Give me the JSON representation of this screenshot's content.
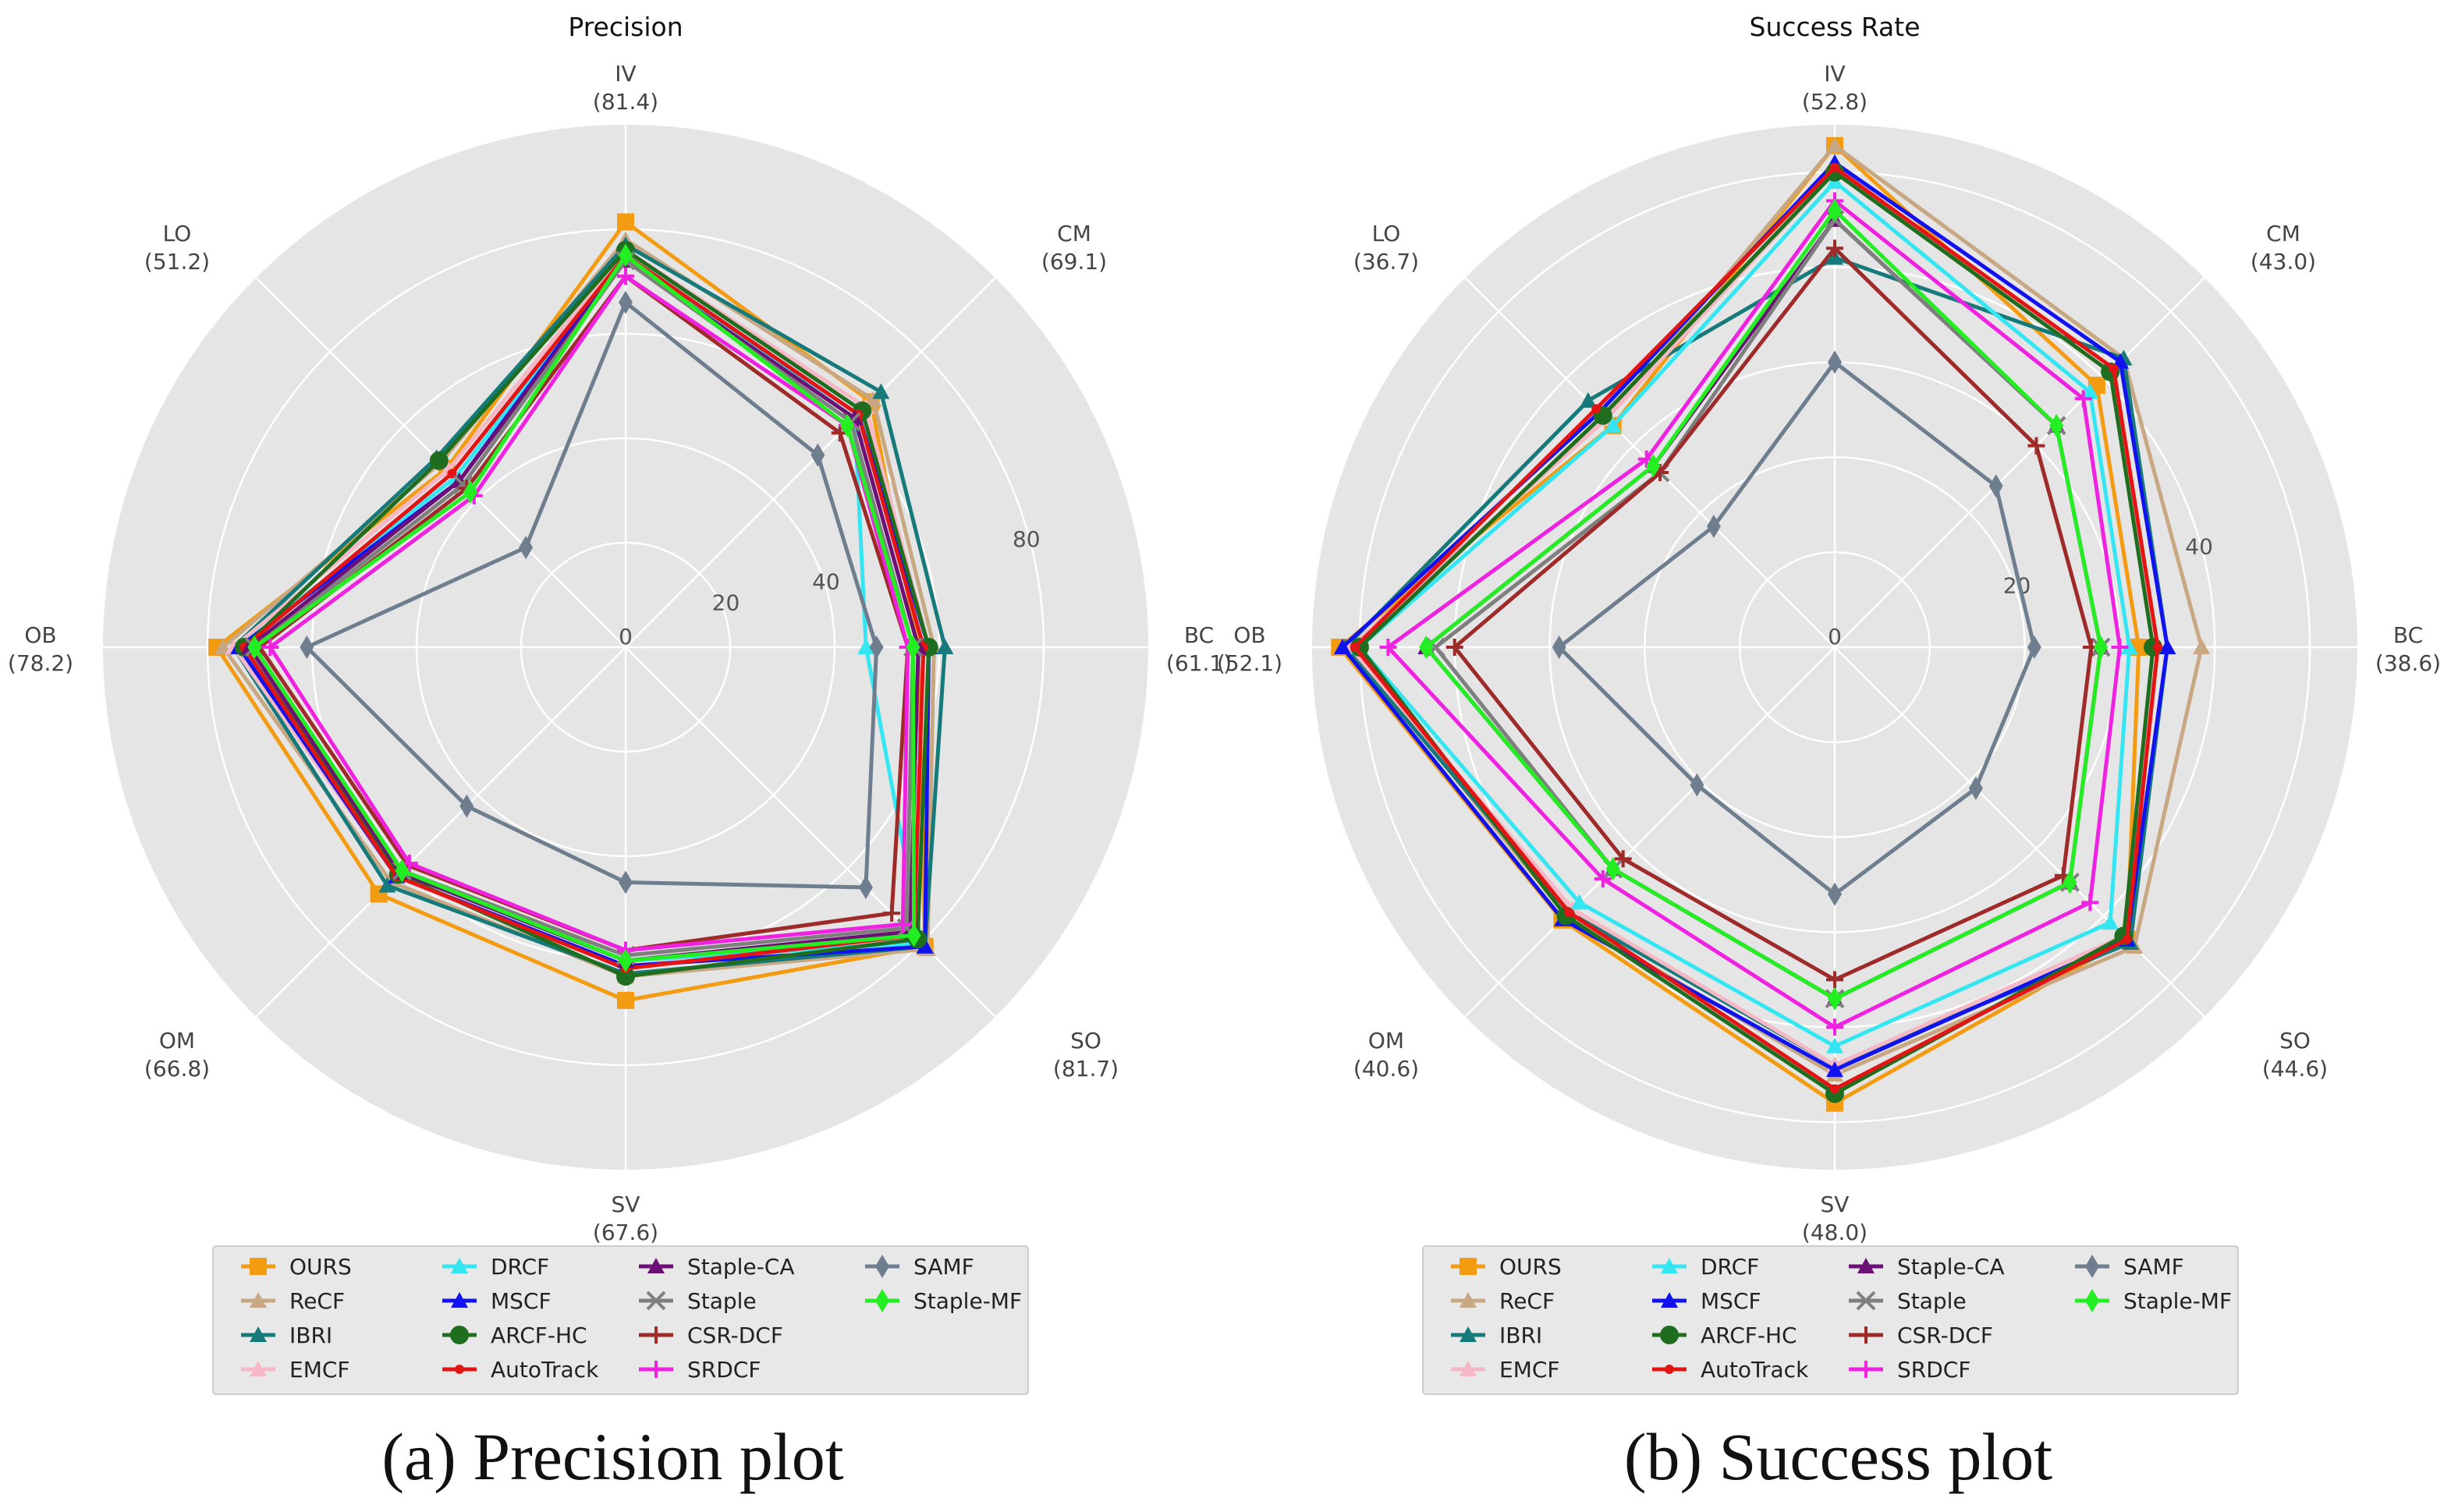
{
  "captions": [
    "(a) Precision plot",
    "(b) Success plot"
  ],
  "chart_data": [
    {
      "type": "radar",
      "title": "Precision",
      "rmax": 100,
      "rticks": [
        0,
        20,
        40,
        80
      ],
      "axes": [
        "IV",
        "CM",
        "BC",
        "SO",
        "SV",
        "OM",
        "OB",
        "LO"
      ],
      "axis_labels": [
        "(81.4)",
        "(69.1)",
        "(61.1)",
        "(81.7)",
        "(67.6)",
        "(66.8)",
        "(78.2)",
        "(51.2)"
      ],
      "series": [
        {
          "name": "OURS",
          "color": "#f39c12",
          "marker": "square",
          "values": [
            81.4,
            66.4,
            56.0,
            81.0,
            67.6,
            66.8,
            78.2,
            48.4
          ]
        },
        {
          "name": "ReCF",
          "color": "#c8a883",
          "marker": "tri",
          "values": [
            78.0,
            67.0,
            59.0,
            81.7,
            63.0,
            63.5,
            77.0,
            50.0
          ]
        },
        {
          "name": "IBRI",
          "color": "#167a7a",
          "marker": "tri",
          "values": [
            77.0,
            69.1,
            61.1,
            81.0,
            62.5,
            64.5,
            75.0,
            51.2
          ]
        },
        {
          "name": "EMCF",
          "color": "#f5b8c4",
          "marker": "tri",
          "values": [
            76.0,
            65.0,
            58.0,
            79.0,
            61.0,
            62.0,
            75.0,
            48.0
          ]
        },
        {
          "name": "DRCF",
          "color": "#33e6f2",
          "marker": "tri",
          "values": [
            75.0,
            62.0,
            46.0,
            80.0,
            60.0,
            61.0,
            74.0,
            46.0
          ]
        },
        {
          "name": "MSCF",
          "color": "#1212ee",
          "marker": "tri",
          "values": [
            75.0,
            63.0,
            58.0,
            81.0,
            61.0,
            62.0,
            74.0,
            45.0
          ]
        },
        {
          "name": "ARCF-HC",
          "color": "#1f6e1f",
          "marker": "circle",
          "values": [
            76.0,
            64.0,
            58.0,
            79.0,
            63.0,
            61.5,
            73.0,
            50.5
          ]
        },
        {
          "name": "AutoTrack",
          "color": "#e31414",
          "marker": "dot",
          "values": [
            75.0,
            63.0,
            57.0,
            78.0,
            61.5,
            62.0,
            73.0,
            47.0
          ]
        },
        {
          "name": "Staple-CA",
          "color": "#6b1175",
          "marker": "tri",
          "values": [
            74.0,
            62.0,
            56.0,
            77.0,
            60.0,
            61.0,
            72.0,
            45.0
          ]
        },
        {
          "name": "Staple",
          "color": "#7f7f7f",
          "marker": "x",
          "values": [
            74.0,
            61.0,
            55.0,
            76.0,
            59.0,
            60.5,
            71.0,
            44.0
          ]
        },
        {
          "name": "CSR-DCF",
          "color": "#9e2a2a",
          "marker": "plus",
          "values": [
            71.0,
            58.0,
            54.0,
            72.0,
            58.0,
            59.0,
            70.0,
            43.0
          ]
        },
        {
          "name": "SRDCF",
          "color": "#ee22e0",
          "marker": "plus",
          "values": [
            71.0,
            60.0,
            54.0,
            75.0,
            58.0,
            58.5,
            68.0,
            41.0
          ]
        },
        {
          "name": "SAMF",
          "color": "#6f7e8f",
          "marker": "diamond",
          "values": [
            66.0,
            52.0,
            48.0,
            65.0,
            45.0,
            43.0,
            61.0,
            27.0
          ]
        },
        {
          "name": "Staple-MF",
          "color": "#22ee22",
          "marker": "diamond",
          "values": [
            75.0,
            60.0,
            55.0,
            78.0,
            60.0,
            60.5,
            71.0,
            42.0
          ]
        }
      ]
    },
    {
      "type": "radar",
      "title": "Success Rate",
      "rmax": 55,
      "rticks": [
        0,
        20,
        40
      ],
      "axes": [
        "IV",
        "CM",
        "BC",
        "SO",
        "SV",
        "OM",
        "OB",
        "LO"
      ],
      "axis_labels": [
        "(52.8)",
        "(43.0)",
        "(38.6)",
        "(44.6)",
        "(48.0)",
        "(40.6)",
        "(52.1)",
        "(36.7)"
      ],
      "series": [
        {
          "name": "OURS",
          "color": "#f39c12",
          "marker": "square",
          "values": [
            52.8,
            39.0,
            32.0,
            43.5,
            48.0,
            40.6,
            52.1,
            33.0
          ]
        },
        {
          "name": "ReCF",
          "color": "#c8a883",
          "marker": "tri",
          "values": [
            52.8,
            43.0,
            38.6,
            44.6,
            45.0,
            40.0,
            51.0,
            34.0
          ]
        },
        {
          "name": "IBRI",
          "color": "#167a7a",
          "marker": "tri",
          "values": [
            41.0,
            43.0,
            35.0,
            44.0,
            44.0,
            39.5,
            51.5,
            36.7
          ]
        },
        {
          "name": "EMCF",
          "color": "#f5b8c4",
          "marker": "tri",
          "values": [
            50.0,
            41.0,
            34.0,
            43.0,
            44.0,
            39.0,
            51.0,
            34.0
          ]
        },
        {
          "name": "DRCF",
          "color": "#33e6f2",
          "marker": "tri",
          "values": [
            49.0,
            38.0,
            31.0,
            41.0,
            42.0,
            38.0,
            50.0,
            33.0
          ]
        },
        {
          "name": "MSCF",
          "color": "#1212ee",
          "marker": "tri",
          "values": [
            51.0,
            42.5,
            35.0,
            43.5,
            44.5,
            40.5,
            51.8,
            35.0
          ]
        },
        {
          "name": "ARCF-HC",
          "color": "#1f6e1f",
          "marker": "circle",
          "values": [
            50.0,
            41.0,
            33.5,
            43.0,
            47.0,
            40.0,
            50.0,
            34.5
          ]
        },
        {
          "name": "AutoTrack",
          "color": "#e31414",
          "marker": "dot",
          "values": [
            50.5,
            41.5,
            34.0,
            43.5,
            46.5,
            39.5,
            50.5,
            35.5
          ]
        },
        {
          "name": "Staple-CA",
          "color": "#6b1175",
          "marker": "tri",
          "values": [
            45.0,
            33.0,
            28.0,
            35.0,
            37.0,
            33.0,
            43.0,
            27.0
          ]
        },
        {
          "name": "Staple",
          "color": "#7f7f7f",
          "marker": "x",
          "values": [
            45.0,
            33.0,
            28.0,
            35.0,
            37.0,
            33.0,
            42.0,
            26.0
          ]
        },
        {
          "name": "CSR-DCF",
          "color": "#9e2a2a",
          "marker": "plus",
          "values": [
            42.0,
            30.0,
            27.0,
            34.0,
            35.0,
            31.5,
            40.0,
            26.0
          ]
        },
        {
          "name": "SRDCF",
          "color": "#ee22e0",
          "marker": "plus",
          "values": [
            47.0,
            37.0,
            30.0,
            38.0,
            40.0,
            34.5,
            47.0,
            28.0
          ]
        },
        {
          "name": "SAMF",
          "color": "#6f7e8f",
          "marker": "diamond",
          "values": [
            30.0,
            24.0,
            21.0,
            21.0,
            26.0,
            20.5,
            29.0,
            18.0
          ]
        },
        {
          "name": "Staple-MF",
          "color": "#22ee22",
          "marker": "diamond",
          "values": [
            46.0,
            33.0,
            28.0,
            35.0,
            37.0,
            33.0,
            43.0,
            27.0
          ]
        }
      ]
    }
  ]
}
